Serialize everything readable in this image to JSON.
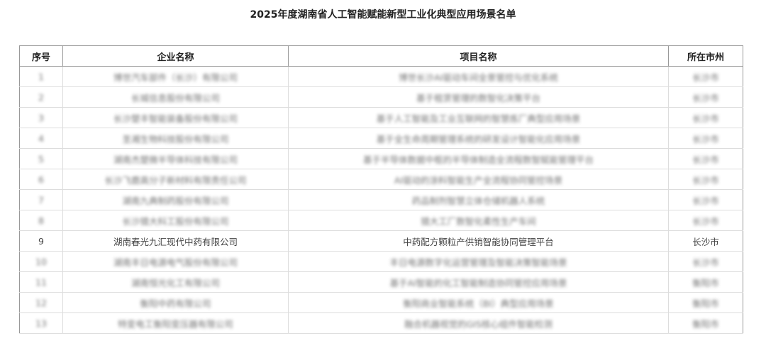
{
  "title": "2025年度湖南省人工智能赋能新型工业化典型应用场景名单",
  "headers": [
    "序号",
    "企业名称",
    "项目名称",
    "所在市州"
  ],
  "rows": [
    {
      "no": "1",
      "company": "博世汽车部件（长沙）有限公司",
      "project": "博世长沙AI驱动车间全景管控与优化系统",
      "city": "长沙市",
      "blurred": true
    },
    {
      "no": "2",
      "company": "长城信息股份有限公司",
      "project": "基于租赁管理的数智化决策平台",
      "city": "长沙市",
      "blurred": true
    },
    {
      "no": "3",
      "company": "长沙楚丰智能装备股份有限公司",
      "project": "基于人工智能及工业互联网的智慧炼厂典型应用场景",
      "city": "长沙市",
      "blurred": true
    },
    {
      "no": "4",
      "company": "圣湘生物科技股份有限公司",
      "project": "基于全生命周期管理系统的研发设计智能化应用场景",
      "city": "长沙市",
      "blurred": true
    },
    {
      "no": "5",
      "company": "湖南杰楚微半导体科技有限公司",
      "project": "基于半导体数据中枢的半导体制造全流程数智赋能管理平台",
      "city": "长沙市",
      "blurred": true
    },
    {
      "no": "6",
      "company": "长沙飞鹿高分子新材料有限责任公司",
      "project": "AI驱动的涂料智能生产全流程协同管控场景",
      "city": "长沙市",
      "blurred": true
    },
    {
      "no": "7",
      "company": "湖南九典制药股份有限公司",
      "project": "药品制剂智慧立体仓储机器人系统",
      "city": "长沙市",
      "blurred": true
    },
    {
      "no": "8",
      "company": "长沙猎大科工股份有限公司",
      "project": "猎大工厂数智化柔性生产车间",
      "city": "长沙市",
      "blurred": true
    },
    {
      "no": "9",
      "company": "湖南春光九汇现代中药有限公司",
      "project": "中药配方颗粒产供销智能协同管理平台",
      "city": "长沙市",
      "blurred": false
    },
    {
      "no": "10",
      "company": "湖南丰日电源电气股份有限公司",
      "project": "丰日电源数字化运营管理及智能决策智能场景",
      "city": "长沙市",
      "blurred": true
    },
    {
      "no": "11",
      "company": "湖南恒光化工有限公司",
      "project": "基于AI智能的化工智能制造协同管控应用场景",
      "city": "衡阳市",
      "blurred": true
    },
    {
      "no": "12",
      "company": "衡阳中药有限公司",
      "project": "衡阳商业智能系统（BI）典型应用场景",
      "city": "衡阳市",
      "blurred": true
    },
    {
      "no": "13",
      "company": "特变电工衡阳变压器有限公司",
      "project": "融合机器视觉的GIS核心组件智能检测",
      "city": "衡阳市",
      "blurred": true
    }
  ]
}
